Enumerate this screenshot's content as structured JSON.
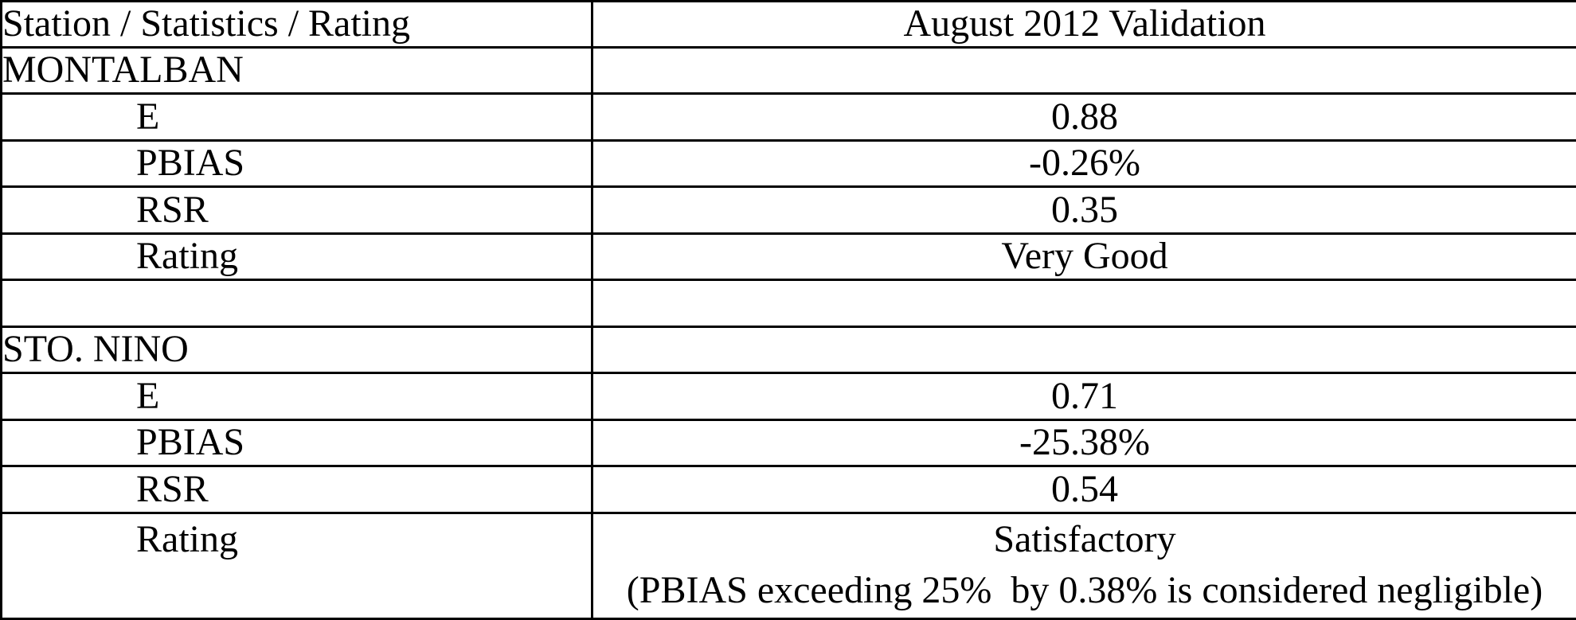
{
  "page": {
    "background_color": "#ffffff",
    "text_color": "#000000",
    "border_color": "#000000"
  },
  "table": {
    "header": {
      "station_col": "Station / Statistics / Rating",
      "validation_col": "August 2012 Validation"
    },
    "rows": [
      {
        "label": "MONTALBAN",
        "value": ""
      },
      {
        "label": "E",
        "value": "0.88"
      },
      {
        "label": "PBIAS",
        "value": "-0.26%"
      },
      {
        "label": "RSR",
        "value": "0.35"
      },
      {
        "label": "Rating",
        "value": "Very Good"
      },
      {
        "label": "",
        "value": ""
      },
      {
        "label": "STO. NINO",
        "value": ""
      },
      {
        "label": "E",
        "value": "0.71"
      },
      {
        "label": "PBIAS",
        "value": "-25.38%"
      },
      {
        "label": "RSR",
        "value": "0.54"
      },
      {
        "label": "Rating",
        "value": "Satisfactory",
        "note": "(PBIAS exceeding 25%  by 0.38% is considered negligible)"
      }
    ]
  }
}
